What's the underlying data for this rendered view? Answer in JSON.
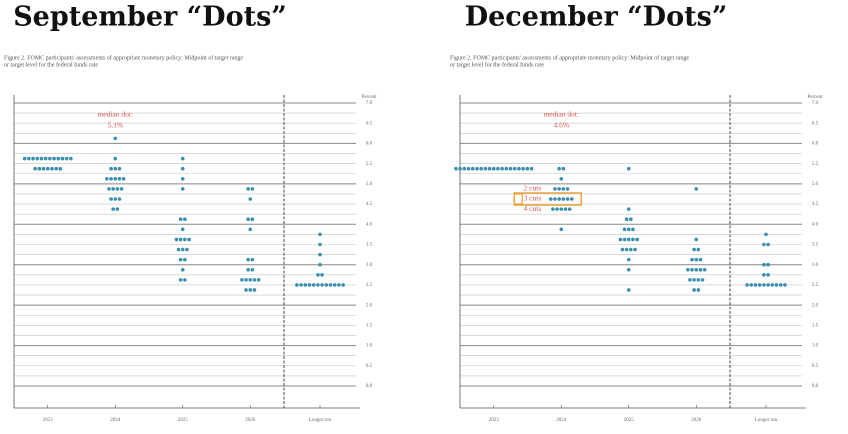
{
  "chart_data": [
    {
      "type": "dot",
      "title": "September “Dots”",
      "subtitle": [
        "Figure 2.  FOMC participants' assessments of appropriate monetary policy:  Midpoint of target range",
        "or target level for the federal funds rate"
      ],
      "y_label": "Percent",
      "categories": [
        "2023",
        "2024",
        "2025",
        "2026",
        "Longer run"
      ],
      "levels": [
        [
          5.625,
          5.375
        ],
        [
          6.125,
          5.625,
          5.375,
          5.125,
          4.875,
          4.625,
          4.375
        ],
        [
          5.625,
          5.375,
          5.125,
          4.875,
          4.125,
          3.875,
          3.625,
          3.375,
          3.125,
          2.875,
          2.625
        ],
        [
          4.875,
          4.625,
          4.125,
          3.875,
          3.125,
          2.875,
          2.625,
          2.375
        ],
        [
          3.75,
          3.5,
          3.25,
          3.0,
          2.75,
          2.5
        ]
      ],
      "counts": [
        [
          12,
          7
        ],
        [
          1,
          1,
          3,
          5,
          4,
          3,
          2
        ],
        [
          1,
          1,
          1,
          1,
          2,
          1,
          4,
          3,
          2,
          1,
          2
        ],
        [
          2,
          1,
          2,
          1,
          2,
          2,
          5,
          3
        ],
        [
          1,
          1,
          1,
          1,
          2,
          12
        ]
      ],
      "color": "#3a8fb0",
      "annotations": [
        "median dot:",
        "5.1%"
      ],
      "ylim": [
        0,
        7
      ],
      "yticks": [
        {
          "value": 7,
          "label": "7.0"
        },
        6.5,
        {
          "value": 6,
          "label": "6.0"
        },
        5.5,
        {
          "value": 5,
          "label": "5.0"
        },
        4.5,
        {
          "value": 4,
          "label": "4.0"
        },
        3.5,
        {
          "value": 3,
          "label": "3.0"
        },
        2.5,
        {
          "value": 2,
          "label": "2.0"
        },
        1.5,
        {
          "value": 1,
          "label": "1.0"
        },
        0.5,
        {
          "value": 0,
          "label": "0.0"
        }
      ],
      "grid_lines": [
        7,
        6.75,
        6.5,
        6.25,
        6,
        5.75,
        5.5,
        5.25,
        5,
        4.75,
        4.5,
        4.25,
        4,
        3.75,
        3.5,
        3.25,
        3,
        2.75,
        2.5,
        2.25,
        2,
        1.75,
        1.5,
        1.25,
        1,
        0.75,
        0.5,
        0.25,
        0
      ]
    },
    {
      "type": "dot",
      "title": "December “Dots”",
      "subtitle": [
        "Figure 2.  FOMC participants' assessments of appropriate monetary policy:  Midpoint of target range",
        "or target level for the federal funds rate"
      ],
      "y_label": "Percent",
      "categories": [
        "2023",
        "2024",
        "2025",
        "2026",
        "Longer run"
      ],
      "levels": [
        [
          5.375
        ],
        [
          5.375,
          5.125,
          4.875,
          4.625,
          4.375,
          3.875
        ],
        [
          5.375,
          4.375,
          4.125,
          3.875,
          3.625,
          3.375,
          3.125,
          2.875,
          2.375
        ],
        [
          4.875,
          3.625,
          3.375,
          3.125,
          2.875,
          2.625,
          2.375
        ],
        [
          3.75,
          3.5,
          3.0,
          2.75,
          2.5
        ]
      ],
      "counts": [
        [
          19
        ],
        [
          2,
          1,
          4,
          6,
          5,
          1
        ],
        [
          1,
          1,
          2,
          3,
          5,
          4,
          1,
          1,
          1
        ],
        [
          1,
          1,
          2,
          3,
          5,
          4,
          2
        ],
        [
          1,
          2,
          2,
          2,
          10
        ]
      ],
      "color": "#3a8fb0",
      "annotations": [
        "median dot:",
        "4.6%",
        "2 cuts",
        "3 cuts",
        "4 cuts"
      ],
      "ylim": [
        0,
        7
      ],
      "yticks": [
        {
          "value": 7,
          "label": "7.0"
        },
        6.5,
        {
          "value": 6,
          "label": "6.0"
        },
        5.5,
        {
          "value": 5,
          "label": "5.0"
        },
        4.5,
        {
          "value": 4,
          "label": "4.0"
        },
        3.5,
        {
          "value": 3,
          "label": "3.0"
        },
        2.5,
        {
          "value": 2,
          "label": "2.0"
        },
        1.5,
        {
          "value": 1,
          "label": "1.0"
        },
        0.5,
        {
          "value": 0,
          "label": "0.0"
        }
      ],
      "grid_lines": [
        7,
        6.75,
        6.5,
        6.25,
        6,
        5.75,
        5.5,
        5.25,
        5,
        4.75,
        4.5,
        4.25,
        4,
        3.75,
        3.5,
        3.25,
        3,
        2.75,
        2.5,
        2.25,
        2,
        1.75,
        1.5,
        1.25,
        1,
        0.75,
        0.5,
        0.25,
        0
      ]
    }
  ]
}
